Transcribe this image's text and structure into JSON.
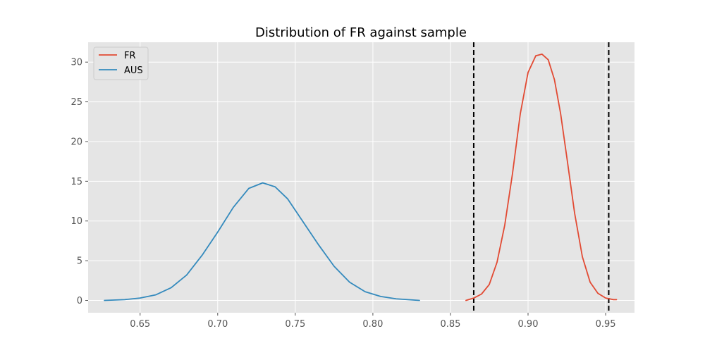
{
  "chart_data": {
    "type": "line",
    "title": "Distribution of FR against sample",
    "xlabel": "",
    "ylabel": "",
    "xlim": [
      0.6165,
      0.9686
    ],
    "ylim": [
      -1.55,
      32.5
    ],
    "x_ticks": [
      0.65,
      0.7,
      0.75,
      0.8,
      0.85,
      0.9,
      0.95
    ],
    "x_tick_labels": [
      "0.65",
      "0.70",
      "0.75",
      "0.80",
      "0.85",
      "0.90",
      "0.95"
    ],
    "y_ticks": [
      0,
      5,
      10,
      15,
      20,
      25,
      30
    ],
    "y_tick_labels": [
      "0",
      "5",
      "10",
      "15",
      "20",
      "25",
      "30"
    ],
    "grid": true,
    "legend_position": "top-left",
    "vertical_lines": [
      0.865,
      0.952
    ],
    "series": [
      {
        "name": "FR",
        "color": "#E24A33",
        "x": [
          0.86,
          0.865,
          0.87,
          0.875,
          0.88,
          0.885,
          0.89,
          0.895,
          0.9,
          0.905,
          0.909,
          0.913,
          0.917,
          0.921,
          0.925,
          0.93,
          0.935,
          0.94,
          0.945,
          0.95,
          0.955,
          0.957
        ],
        "y": [
          0.0,
          0.3,
          0.8,
          2.0,
          4.8,
          9.5,
          16.0,
          23.5,
          28.7,
          30.8,
          31.0,
          30.3,
          27.8,
          23.5,
          18.0,
          11.0,
          5.5,
          2.3,
          0.9,
          0.3,
          0.1,
          0.1
        ]
      },
      {
        "name": "AUS",
        "color": "#348ABD",
        "x": [
          0.627,
          0.64,
          0.65,
          0.66,
          0.67,
          0.68,
          0.69,
          0.7,
          0.71,
          0.72,
          0.729,
          0.737,
          0.745,
          0.755,
          0.765,
          0.775,
          0.785,
          0.795,
          0.805,
          0.815,
          0.83
        ],
        "y": [
          0.0,
          0.1,
          0.3,
          0.7,
          1.6,
          3.2,
          5.7,
          8.6,
          11.7,
          14.1,
          14.8,
          14.3,
          12.8,
          9.9,
          7.0,
          4.3,
          2.3,
          1.1,
          0.5,
          0.2,
          0.0
        ]
      }
    ]
  }
}
